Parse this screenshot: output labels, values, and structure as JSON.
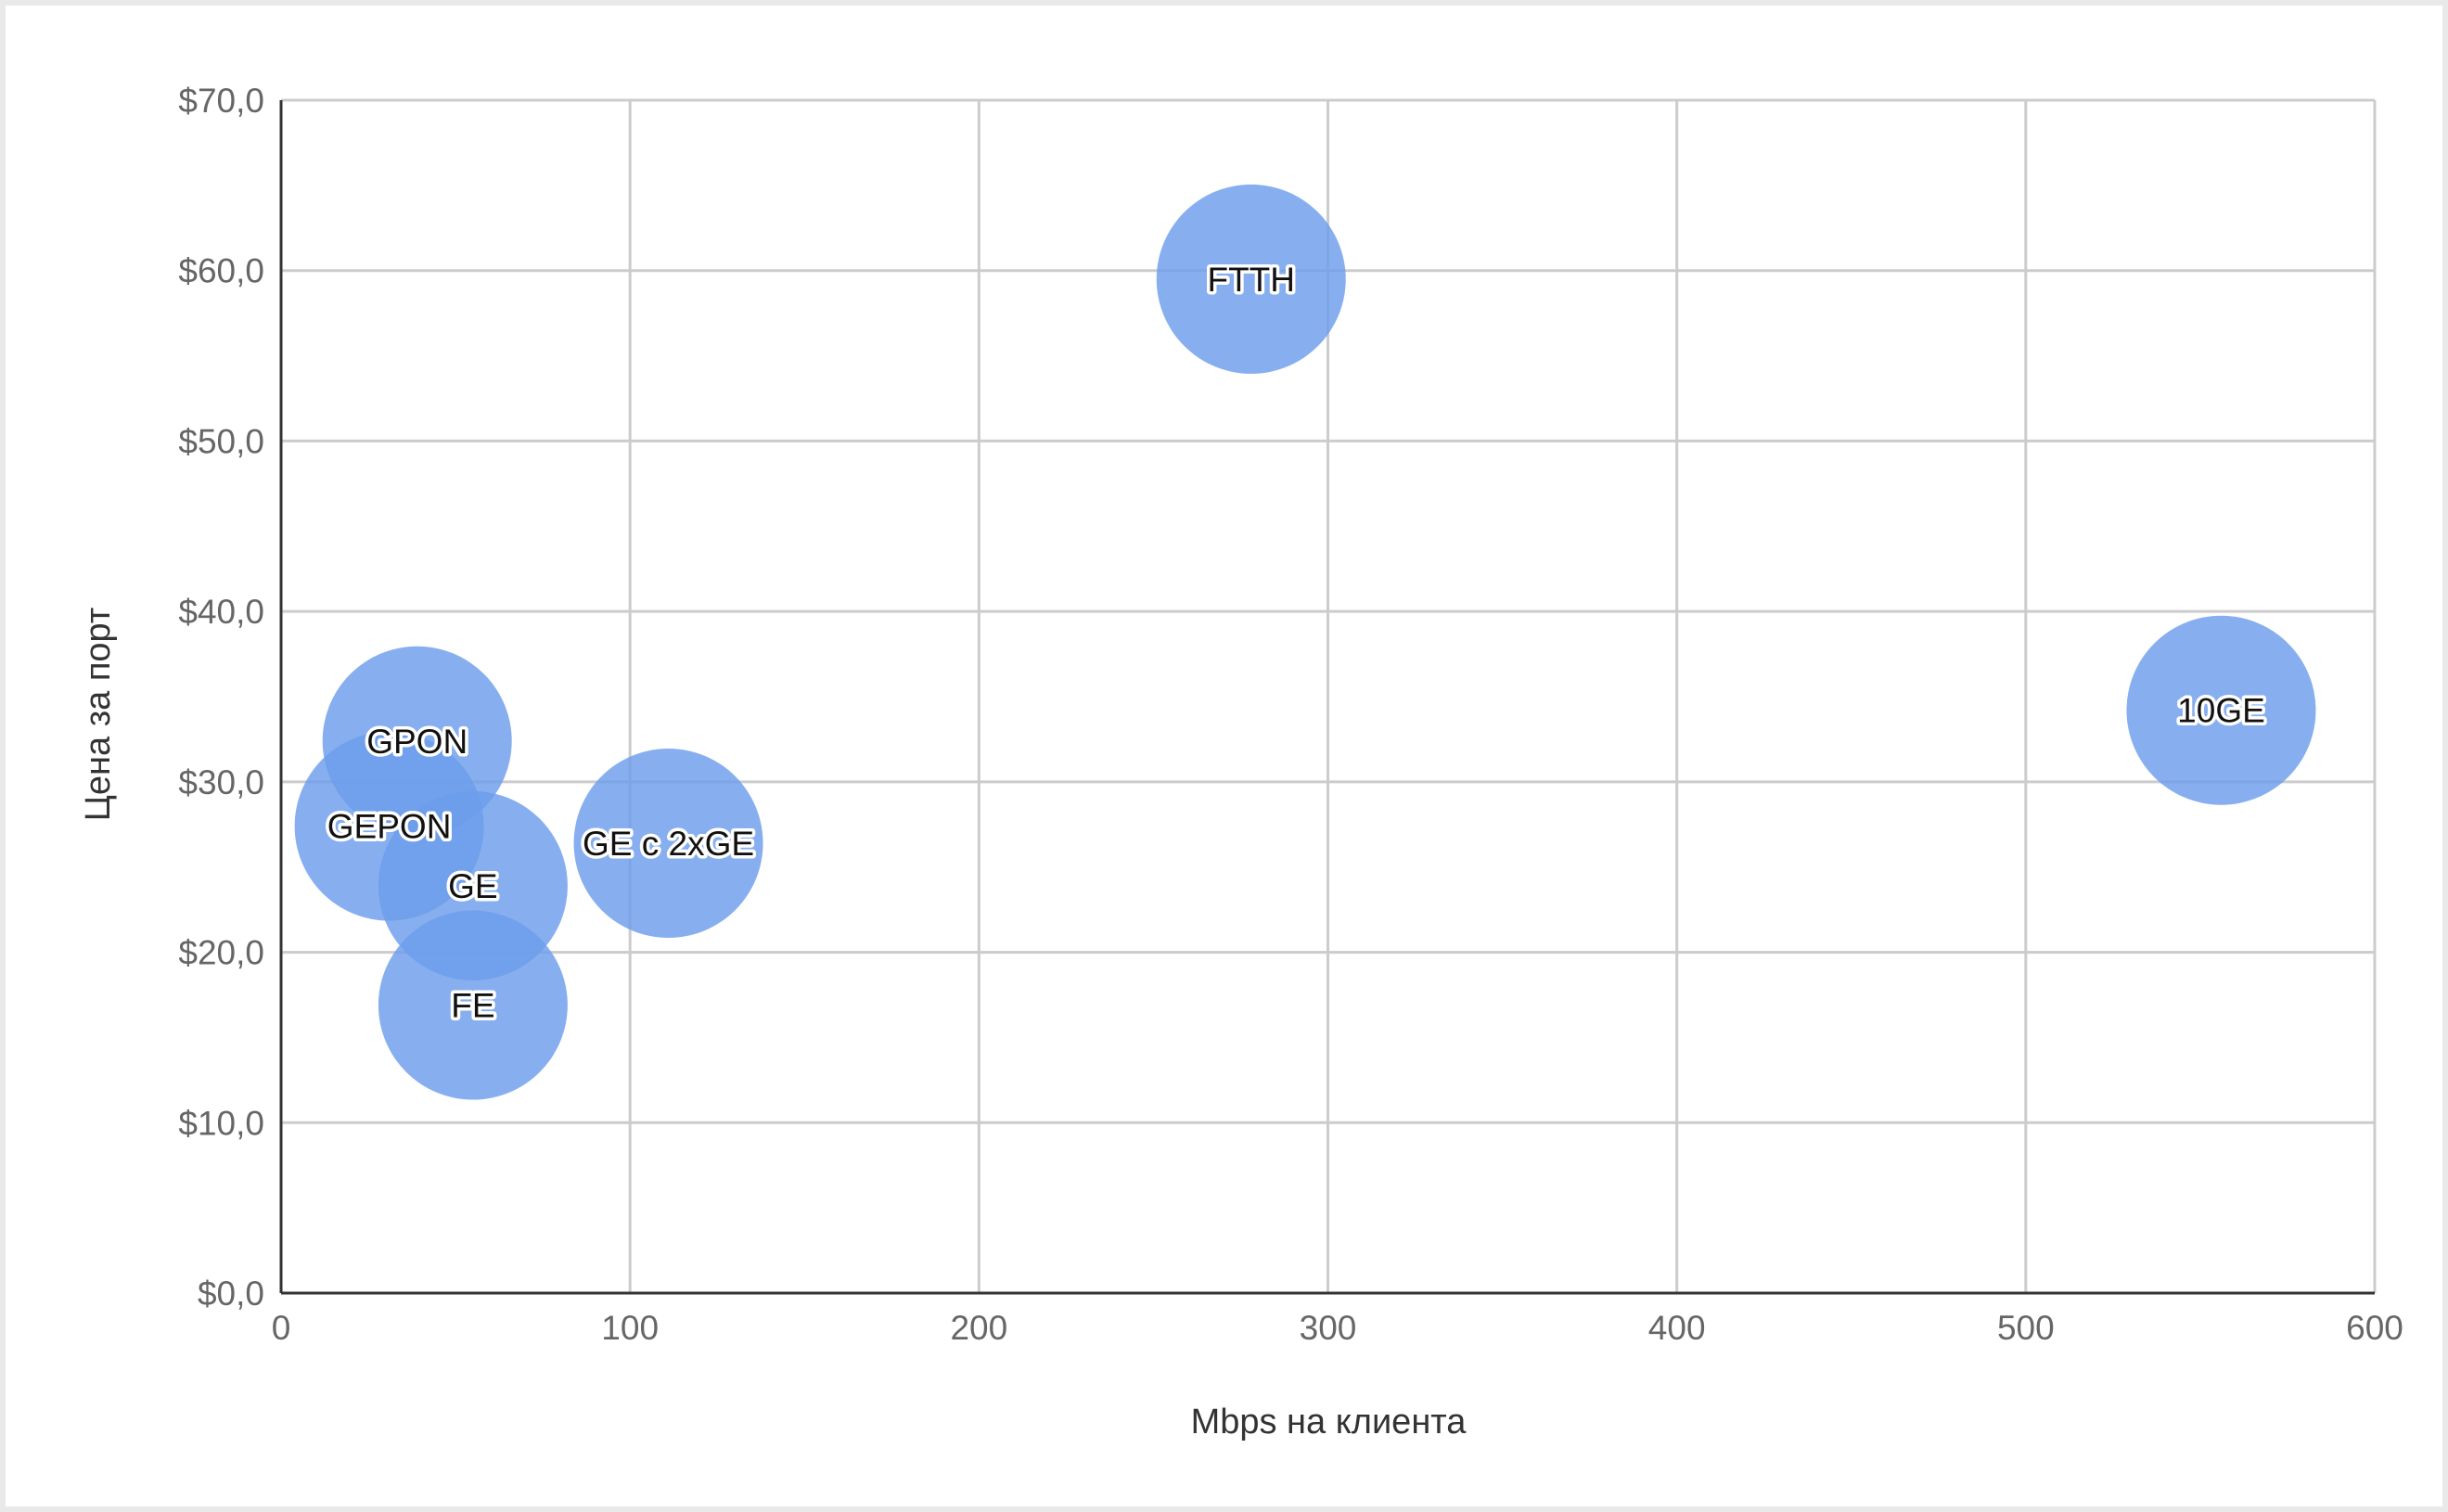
{
  "chart_data": {
    "type": "bubble",
    "title": "",
    "xlabel": "Mbps на клиента",
    "ylabel": "Цена  за порт",
    "xlim": [
      0,
      600
    ],
    "ylim": [
      0,
      70
    ],
    "xticks": [
      0,
      100,
      200,
      300,
      400,
      500,
      600
    ],
    "yticks": [
      0,
      10,
      20,
      30,
      40,
      50,
      60,
      70
    ],
    "xtick_labels": [
      "0",
      "100",
      "200",
      "300",
      "400",
      "500",
      "600"
    ],
    "ytick_labels": [
      "$0,0",
      "$10,0",
      "$20,0",
      "$30,0",
      "$40,0",
      "$50,0",
      "$60,0",
      "$70,0"
    ],
    "grid": true,
    "bubble_color": "#6d9eeb",
    "points": [
      {
        "label": "FTTH",
        "x": 278,
        "y": 59.5
      },
      {
        "label": "10GE",
        "x": 556,
        "y": 34.2
      },
      {
        "label": "GPON",
        "x": 39,
        "y": 32.4
      },
      {
        "label": "GEPON",
        "x": 31,
        "y": 27.4
      },
      {
        "label": "GE c 2xGE",
        "x": 111,
        "y": 26.4
      },
      {
        "label": "GE",
        "x": 55,
        "y": 23.9
      },
      {
        "label": "FE",
        "x": 55,
        "y": 16.9
      }
    ]
  }
}
